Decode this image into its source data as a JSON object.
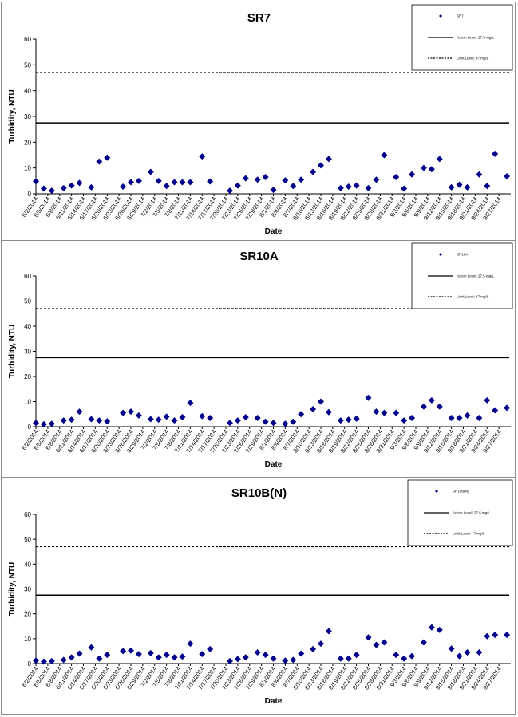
{
  "chart_data": [
    {
      "type": "scatter",
      "title": "SR7",
      "xlabel": "Date",
      "ylabel": "Turbidity, NTU",
      "ylim": [
        0,
        60
      ],
      "yticks": [
        0,
        10,
        20,
        30,
        40,
        50,
        60
      ],
      "x_tick_labels": [
        "6/2/2014",
        "6/5/2014",
        "6/8/2014",
        "6/11/2014",
        "6/14/2014",
        "6/17/2014",
        "6/20/2014",
        "6/23/2014",
        "6/26/2014",
        "6/29/2014",
        "7/2/2014",
        "7/5/2014",
        "7/8/2014",
        "7/11/2014",
        "7/14/2014",
        "7/17/2014",
        "7/20/2014",
        "7/23/2014",
        "7/26/2014",
        "7/29/2014",
        "8/1/2014",
        "8/4/2014",
        "8/7/2014",
        "8/10/2014",
        "8/13/2014",
        "8/16/2014",
        "8/19/2014",
        "8/22/2014",
        "8/25/2014",
        "8/28/2014",
        "8/31/2014",
        "9/3/2014",
        "9/6/2014",
        "9/9/2014",
        "9/12/2014",
        "9/15/2014",
        "9/18/2014",
        "9/21/2014",
        "9/24/2014",
        "9/27/2014"
      ],
      "legend": {
        "placement": "top-right",
        "entries": [
          "SR7",
          "Action Level: 27.5 mg/L",
          "Limit Level: 47 mg/L"
        ]
      },
      "series": [
        {
          "name": "SR7",
          "marker": "diamond",
          "color": "#00008b",
          "points": [
            [
              "6/2/2014",
              4.8
            ],
            [
              "6/4/2014",
              2.0
            ],
            [
              "6/6/2014",
              1.2
            ],
            [
              "6/9/2014",
              2.2
            ],
            [
              "6/11/2014",
              3.2
            ],
            [
              "6/13/2014",
              4.2
            ],
            [
              "6/16/2014",
              2.5
            ],
            [
              "6/18/2014",
              12.5
            ],
            [
              "6/20/2014",
              14.0
            ],
            [
              "6/24/2014",
              2.8
            ],
            [
              "6/26/2014",
              4.5
            ],
            [
              "6/28/2014",
              5.0
            ],
            [
              "7/1/2014",
              8.5
            ],
            [
              "7/3/2014",
              5.0
            ],
            [
              "7/5/2014",
              3.0
            ],
            [
              "7/7/2014",
              4.5
            ],
            [
              "7/9/2014",
              4.5
            ],
            [
              "7/11/2014",
              4.5
            ],
            [
              "7/14/2014",
              14.5
            ],
            [
              "7/16/2014",
              4.8
            ],
            [
              "7/21/2014",
              1.2
            ],
            [
              "7/23/2014",
              3.2
            ],
            [
              "7/25/2014",
              6.0
            ],
            [
              "7/28/2014",
              5.5
            ],
            [
              "7/30/2014",
              6.5
            ],
            [
              "8/1/2014",
              1.5
            ],
            [
              "8/4/2014",
              5.2
            ],
            [
              "8/6/2014",
              3.0
            ],
            [
              "8/8/2014",
              5.5
            ],
            [
              "8/11/2014",
              8.5
            ],
            [
              "8/13/2014",
              11.0
            ],
            [
              "8/15/2014",
              13.5
            ],
            [
              "8/18/2014",
              2.2
            ],
            [
              "8/20/2014",
              2.8
            ],
            [
              "8/22/2014",
              3.2
            ],
            [
              "8/25/2014",
              2.2
            ],
            [
              "8/27/2014",
              5.5
            ],
            [
              "8/29/2014",
              15.0
            ],
            [
              "9/1/2014",
              6.5
            ],
            [
              "9/3/2014",
              2.0
            ],
            [
              "9/5/2014",
              7.5
            ],
            [
              "9/8/2014",
              10.0
            ],
            [
              "9/10/2014",
              9.5
            ],
            [
              "9/12/2014",
              13.5
            ],
            [
              "9/15/2014",
              2.5
            ],
            [
              "9/17/2014",
              3.5
            ],
            [
              "9/19/2014",
              2.5
            ],
            [
              "9/22/2014",
              7.5
            ],
            [
              "9/24/2014",
              3.0
            ],
            [
              "9/26/2014",
              15.5
            ],
            [
              "9/29/2014",
              6.8
            ]
          ]
        },
        {
          "name": "Action Level: 27.5 mg/L",
          "line": "solid",
          "color": "#000000",
          "value": 27.5
        },
        {
          "name": "Limit Level: 47 mg/L",
          "line": "dashed",
          "color": "#000000",
          "value": 47
        }
      ]
    },
    {
      "type": "scatter",
      "title": "SR10A",
      "xlabel": "Date",
      "ylabel": "Turbidity, NTU",
      "ylim": [
        0,
        60
      ],
      "yticks": [
        0,
        10,
        20,
        30,
        40,
        50,
        60
      ],
      "x_tick_labels": [
        "6/2/2014",
        "6/5/2014",
        "6/8/2014",
        "6/11/2014",
        "6/14/2014",
        "6/17/2014",
        "6/20/2014",
        "6/23/2014",
        "6/26/2014",
        "6/29/2014",
        "7/2/2014",
        "7/5/2014",
        "7/8/2014",
        "7/11/2014",
        "7/14/2014",
        "7/17/2014",
        "7/20/2014",
        "7/23/2014",
        "7/26/2014",
        "7/29/2014",
        "8/1/2014",
        "8/4/2014",
        "8/7/2014",
        "8/10/2014",
        "8/13/2014",
        "8/16/2014",
        "8/19/2014",
        "8/22/2014",
        "8/25/2014",
        "8/28/2014",
        "8/31/2014",
        "9/3/2014",
        "9/6/2014",
        "9/9/2014",
        "9/12/2014",
        "9/15/2014",
        "9/18/2014",
        "9/21/2014",
        "9/24/2014",
        "9/27/2014"
      ],
      "legend": {
        "placement": "top-right",
        "entries": [
          "SR10A",
          "Action Level: 27.5 mg/L",
          "Limit Level: 47 mg/L"
        ]
      },
      "series": [
        {
          "name": "SR10A",
          "marker": "diamond",
          "color": "#00008b",
          "points": [
            [
              "6/2/2014",
              1.5
            ],
            [
              "6/4/2014",
              1.0
            ],
            [
              "6/6/2014",
              1.2
            ],
            [
              "6/9/2014",
              2.5
            ],
            [
              "6/11/2014",
              2.8
            ],
            [
              "6/13/2014",
              6.0
            ],
            [
              "6/16/2014",
              3.0
            ],
            [
              "6/18/2014",
              2.5
            ],
            [
              "6/20/2014",
              2.2
            ],
            [
              "6/24/2014",
              5.5
            ],
            [
              "6/26/2014",
              6.0
            ],
            [
              "6/28/2014",
              4.5
            ],
            [
              "7/1/2014",
              3.0
            ],
            [
              "7/3/2014",
              2.8
            ],
            [
              "7/5/2014",
              4.0
            ],
            [
              "7/7/2014",
              2.5
            ],
            [
              "7/9/2014",
              3.8
            ],
            [
              "7/11/2014",
              9.5
            ],
            [
              "7/14/2014",
              4.2
            ],
            [
              "7/16/2014",
              3.5
            ],
            [
              "7/21/2014",
              1.5
            ],
            [
              "7/23/2014",
              2.5
            ],
            [
              "7/25/2014",
              3.8
            ],
            [
              "7/28/2014",
              3.5
            ],
            [
              "7/30/2014",
              2.0
            ],
            [
              "8/1/2014",
              1.5
            ],
            [
              "8/4/2014",
              1.2
            ],
            [
              "8/6/2014",
              2.0
            ],
            [
              "8/8/2014",
              5.0
            ],
            [
              "8/11/2014",
              7.0
            ],
            [
              "8/13/2014",
              10.0
            ],
            [
              "8/15/2014",
              5.8
            ],
            [
              "8/18/2014",
              2.5
            ],
            [
              "8/20/2014",
              2.8
            ],
            [
              "8/22/2014",
              3.2
            ],
            [
              "8/25/2014",
              11.5
            ],
            [
              "8/27/2014",
              6.0
            ],
            [
              "8/29/2014",
              5.5
            ],
            [
              "9/1/2014",
              5.5
            ],
            [
              "9/3/2014",
              2.5
            ],
            [
              "9/5/2014",
              3.5
            ],
            [
              "9/8/2014",
              8.0
            ],
            [
              "9/10/2014",
              10.5
            ],
            [
              "9/12/2014",
              8.0
            ],
            [
              "9/15/2014",
              3.5
            ],
            [
              "9/17/2014",
              3.5
            ],
            [
              "9/19/2014",
              4.5
            ],
            [
              "9/22/2014",
              3.5
            ],
            [
              "9/24/2014",
              10.5
            ],
            [
              "9/26/2014",
              6.5
            ],
            [
              "9/29/2014",
              7.5
            ]
          ]
        },
        {
          "name": "Action Level: 27.5 mg/L",
          "line": "solid",
          "color": "#000000",
          "value": 27.5
        },
        {
          "name": "Limit Level: 47 mg/L",
          "line": "dashed",
          "color": "#000000",
          "value": 47
        }
      ]
    },
    {
      "type": "scatter",
      "title": "SR10B(N)",
      "xlabel": "Date",
      "ylabel": "Turbidity, NTU",
      "ylim": [
        0,
        60
      ],
      "yticks": [
        0,
        10,
        20,
        30,
        40,
        50,
        60
      ],
      "x_tick_labels": [
        "6/2/2014",
        "6/5/2014",
        "6/8/2014",
        "6/11/2014",
        "6/14/2014",
        "6/17/2014",
        "6/20/2014",
        "6/23/2014",
        "6/26/2014",
        "6/29/2014",
        "7/2/2014",
        "7/5/2014",
        "7/8/2014",
        "7/11/2014",
        "7/14/2014",
        "7/17/2014",
        "7/20/2014",
        "7/23/2014",
        "7/26/2014",
        "7/29/2014",
        "8/1/2014",
        "8/4/2014",
        "8/7/2014",
        "8/10/2014",
        "8/13/2014",
        "8/16/2014",
        "8/19/2014",
        "8/22/2014",
        "8/25/2014",
        "8/28/2014",
        "8/31/2014",
        "9/3/2014",
        "9/6/2014",
        "9/9/2014",
        "9/12/2014",
        "9/15/2014",
        "9/18/2014",
        "9/21/2014",
        "9/24/2014",
        "9/27/2014"
      ],
      "legend": {
        "placement": "top-right",
        "entries": [
          "SR10B(N)",
          "Action Level: 27.5 mg/L",
          "Limit Level: 47 mg/L"
        ]
      },
      "series": [
        {
          "name": "SR10B(N)",
          "marker": "diamond",
          "color": "#00008b",
          "points": [
            [
              "6/2/2014",
              1.2
            ],
            [
              "6/4/2014",
              0.8
            ],
            [
              "6/6/2014",
              1.0
            ],
            [
              "6/9/2014",
              1.5
            ],
            [
              "6/11/2014",
              2.5
            ],
            [
              "6/13/2014",
              4.0
            ],
            [
              "6/16/2014",
              6.5
            ],
            [
              "6/18/2014",
              2.0
            ],
            [
              "6/20/2014",
              3.5
            ],
            [
              "6/24/2014",
              5.0
            ],
            [
              "6/26/2014",
              5.2
            ],
            [
              "6/28/2014",
              3.8
            ],
            [
              "7/1/2014",
              4.2
            ],
            [
              "7/3/2014",
              2.5
            ],
            [
              "7/5/2014",
              3.5
            ],
            [
              "7/7/2014",
              2.5
            ],
            [
              "7/9/2014",
              2.8
            ],
            [
              "7/11/2014",
              8.0
            ],
            [
              "7/14/2014",
              3.8
            ],
            [
              "7/16/2014",
              5.8
            ],
            [
              "7/21/2014",
              1.0
            ],
            [
              "7/23/2014",
              1.8
            ],
            [
              "7/25/2014",
              2.5
            ],
            [
              "7/28/2014",
              4.5
            ],
            [
              "7/30/2014",
              3.5
            ],
            [
              "8/1/2014",
              2.0
            ],
            [
              "8/4/2014",
              1.2
            ],
            [
              "8/6/2014",
              1.5
            ],
            [
              "8/8/2014",
              4.0
            ],
            [
              "8/11/2014",
              5.8
            ],
            [
              "8/13/2014",
              8.0
            ],
            [
              "8/15/2014",
              13.0
            ],
            [
              "8/18/2014",
              2.0
            ],
            [
              "8/20/2014",
              2.0
            ],
            [
              "8/22/2014",
              3.5
            ],
            [
              "8/25/2014",
              10.5
            ],
            [
              "8/27/2014",
              7.5
            ],
            [
              "8/29/2014",
              8.5
            ],
            [
              "9/1/2014",
              3.5
            ],
            [
              "9/3/2014",
              2.0
            ],
            [
              "9/5/2014",
              3.0
            ],
            [
              "9/8/2014",
              8.5
            ],
            [
              "9/10/2014",
              14.5
            ],
            [
              "9/12/2014",
              13.5
            ],
            [
              "9/15/2014",
              6.0
            ],
            [
              "9/17/2014",
              3.0
            ],
            [
              "9/19/2014",
              4.5
            ],
            [
              "9/22/2014",
              4.5
            ],
            [
              "9/24/2014",
              11.0
            ],
            [
              "9/26/2014",
              11.5
            ],
            [
              "9/29/2014",
              11.5
            ]
          ]
        },
        {
          "name": "Action Level: 27.5 mg/L",
          "line": "solid",
          "color": "#000000",
          "value": 27.5
        },
        {
          "name": "Limit Level: 47 mg/L",
          "line": "dashed",
          "color": "#000000",
          "value": 47
        }
      ]
    }
  ]
}
